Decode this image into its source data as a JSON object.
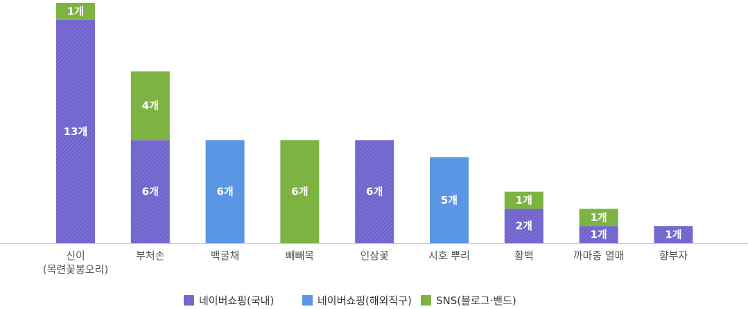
{
  "chart_data": {
    "type": "bar",
    "stacked": true,
    "categories": [
      [
        "신이",
        "(목련꽃봉오리)"
      ],
      [
        "부처손"
      ],
      [
        "백굴채"
      ],
      [
        "빼빼목"
      ],
      [
        "인삼꽃"
      ],
      [
        "시호 뿌리"
      ],
      [
        "황백"
      ],
      [
        "까마중 열매"
      ],
      [
        "향부자"
      ]
    ],
    "series": [
      {
        "name": "네이버쇼핑(국내)",
        "color": "#7b6fd6",
        "hatched": true,
        "values": [
          13,
          6,
          0,
          0,
          6,
          0,
          2,
          1,
          1
        ]
      },
      {
        "name": "네이버쇼핑(해외직구)",
        "color": "#5b96e5",
        "hatched": false,
        "values": [
          0,
          0,
          6,
          0,
          0,
          5,
          0,
          0,
          0
        ]
      },
      {
        "name": "SNS(블로그·밴드)",
        "color": "#7cb342",
        "hatched": false,
        "values": [
          1,
          4,
          0,
          6,
          0,
          0,
          1,
          1,
          0
        ]
      }
    ],
    "value_suffix": "개",
    "ylim": [
      0,
      14
    ],
    "grid": false,
    "legend": "bottom"
  }
}
